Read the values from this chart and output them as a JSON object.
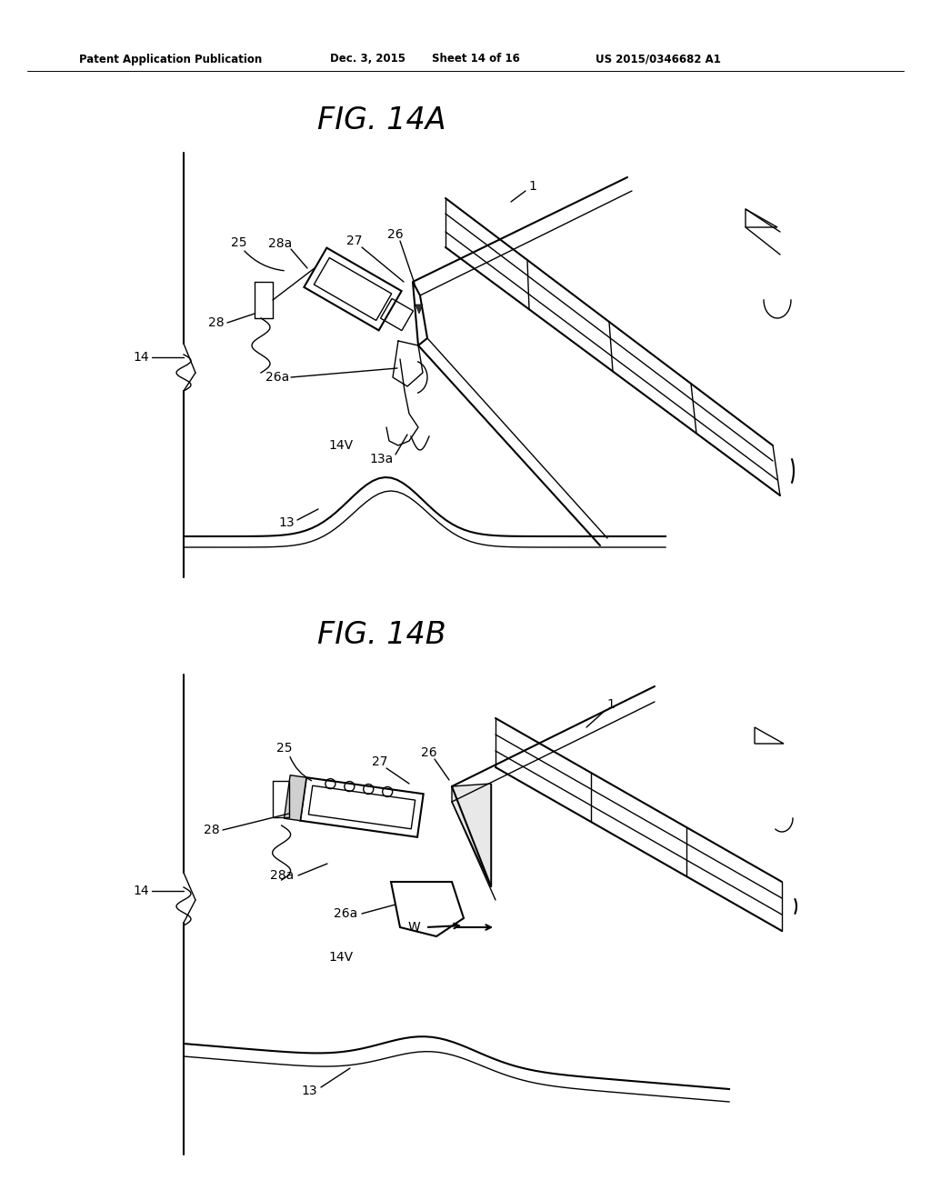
{
  "background_color": "#ffffff",
  "line_color": "#000000",
  "fig_width": 10.24,
  "fig_height": 13.2,
  "header_text": "Patent Application Publication",
  "header_date": "Dec. 3, 2015",
  "header_sheet": "Sheet 14 of 16",
  "header_patent": "US 2015/0346682 A1",
  "fig_label_A": "FIG. 14A",
  "fig_label_B": "FIG. 14B"
}
